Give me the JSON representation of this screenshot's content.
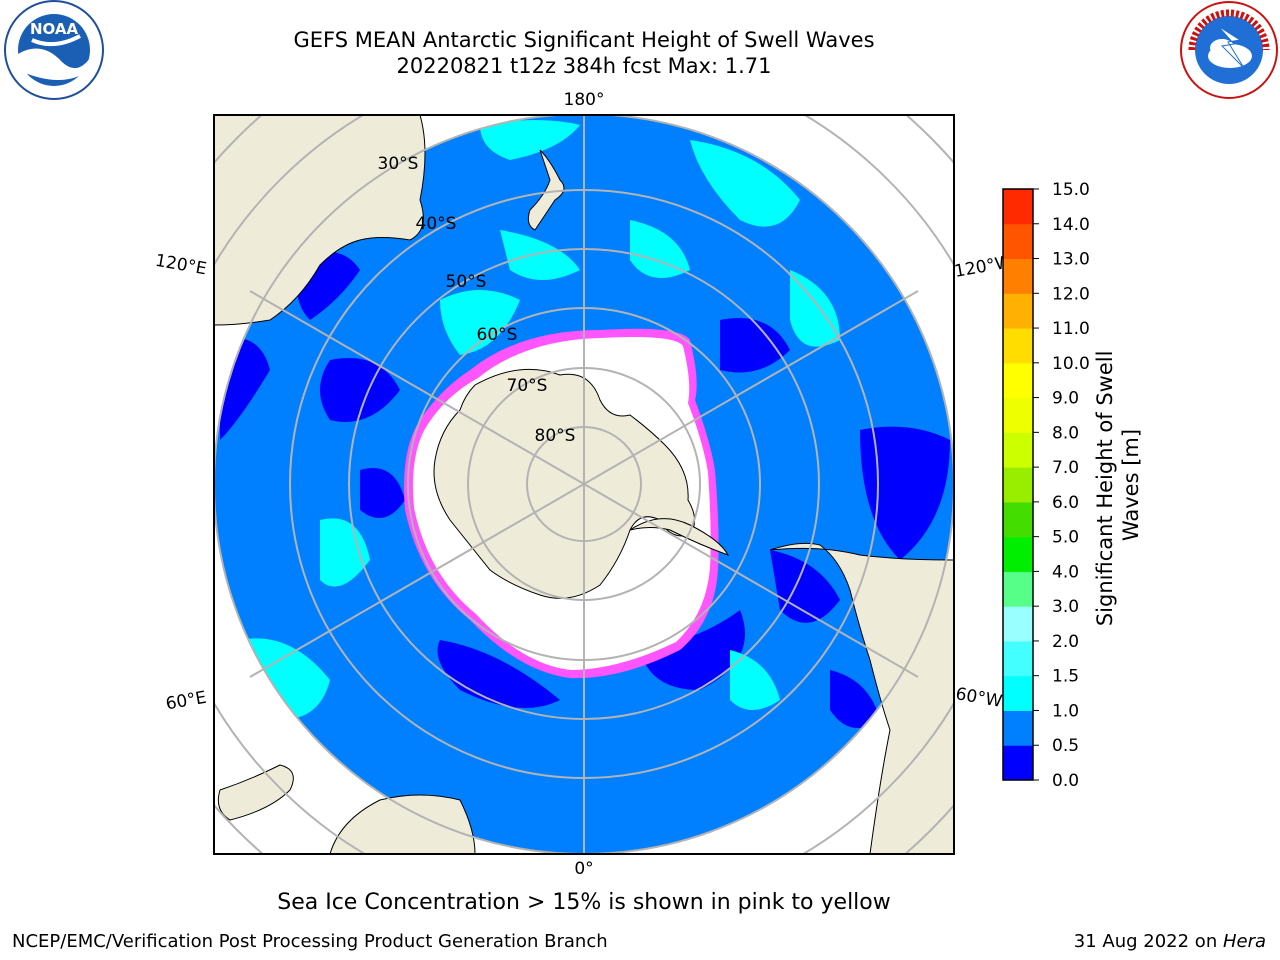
{
  "header": {
    "title_line1": "GEFS MEAN Antarctic Significant Height of Swell Waves",
    "title_line2": "20220821 t12z 384h fcst   Max: 1.71"
  },
  "logos": {
    "left": {
      "icon": "noaa-logo",
      "text": "NOAA"
    },
    "right": {
      "icon": "national-weather-service-logo"
    }
  },
  "map": {
    "projection": "south-polar-stereographic",
    "lon_labels": {
      "top": "180°",
      "bottom": "0°",
      "upper_left": "120°E",
      "upper_right": "120°W",
      "lower_left": "60°E",
      "lower_right": "60°W"
    },
    "lat_labels": [
      "30°S",
      "40°S",
      "50°S",
      "60°S",
      "70°S",
      "80°S"
    ],
    "colors": {
      "ocean_base": "#0080ff",
      "ocean_low": "#0000ff",
      "swell_mid": "#00ffff",
      "land": "#eeecd9",
      "ice_edge": "#ff00ff",
      "grid": "#b3b3b3"
    }
  },
  "colorbar": {
    "label": "Significant Height of Swell Waves [m]",
    "tick_labels": [
      "0.0",
      "0.5",
      "1.0",
      "1.5",
      "2.0",
      "3.0",
      "4.0",
      "5.0",
      "6.0",
      "7.0",
      "8.0",
      "9.0",
      "10.0",
      "11.0",
      "12.0",
      "13.0",
      "14.0",
      "15.0"
    ],
    "colors": [
      "#0000ff",
      "#0080ff",
      "#00ffff",
      "#44ffff",
      "#99ffff",
      "#55ff88",
      "#00ee00",
      "#44dd00",
      "#99ee00",
      "#ccff00",
      "#eeff00",
      "#ffff00",
      "#ffdd00",
      "#ffb000",
      "#ff8000",
      "#ff5500",
      "#ff2a00",
      "#ff0000"
    ]
  },
  "footer": {
    "ice_note": "Sea Ice Concentration > 15% is shown in pink to yellow",
    "left": "NCEP/EMC/Verification Post Processing Product Generation Branch",
    "right_date": "31 Aug 2022 on ",
    "right_machine": "Hera"
  }
}
